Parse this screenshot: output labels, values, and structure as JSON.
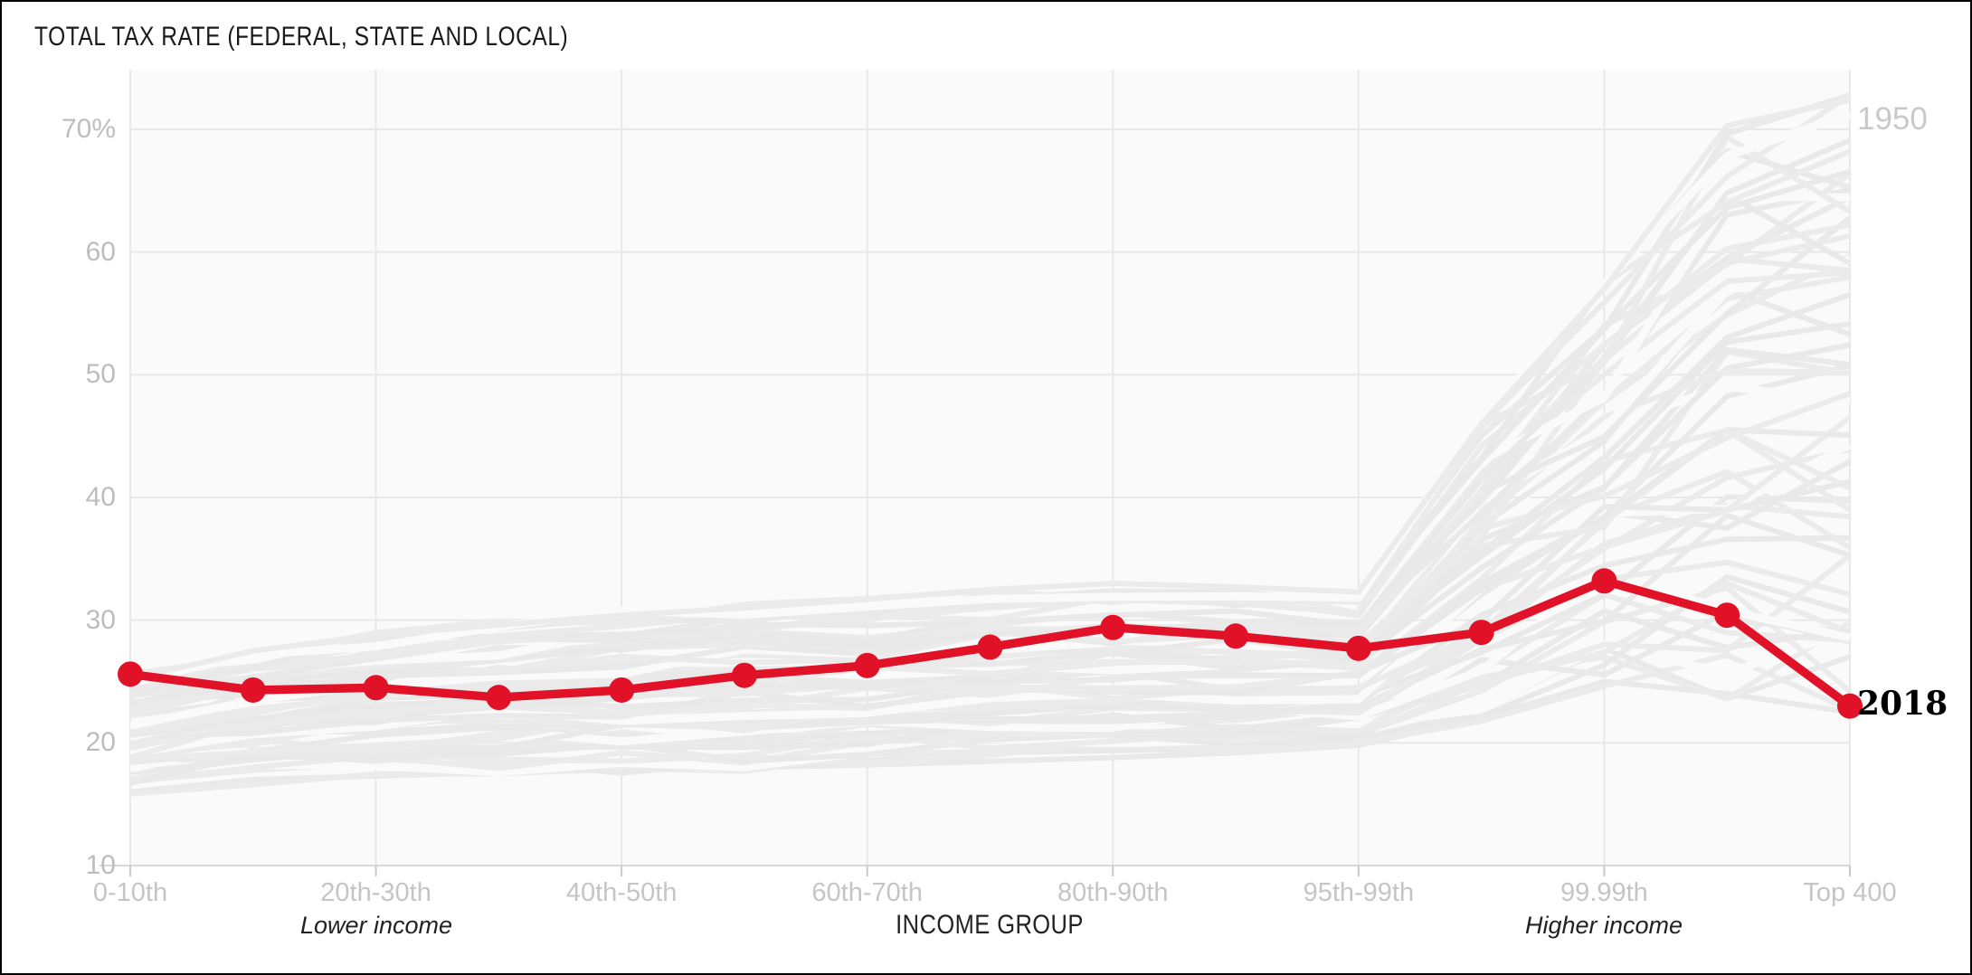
{
  "title": "TOTAL TAX RATE (FEDERAL, STATE AND LOCAL)",
  "chart_data": {
    "type": "line",
    "title": "TOTAL TAX RATE (FEDERAL, STATE AND LOCAL)",
    "xlabel": "INCOME GROUP",
    "x_annotations": {
      "lower": "Lower income",
      "higher": "Higher income"
    },
    "x_point_count": 15,
    "x_tick_indices": [
      0,
      2,
      4,
      6,
      8,
      10,
      12,
      14
    ],
    "x_tick_labels": [
      "0-10th",
      "20th-30th",
      "40th-50th",
      "60th-70th",
      "80th-90th",
      "95th-99th",
      "99.99th",
      "Top 400"
    ],
    "y_ticks": [
      {
        "value": 70,
        "label": "70%"
      },
      {
        "value": 60,
        "label": "60"
      },
      {
        "value": 50,
        "label": "50"
      },
      {
        "value": 40,
        "label": "40"
      },
      {
        "value": 30,
        "label": "30"
      },
      {
        "value": 20,
        "label": "20"
      },
      {
        "value": 10,
        "label": "10"
      }
    ],
    "ylim": [
      10,
      73
    ],
    "grid": true,
    "legend": "direct-labels-right",
    "series": [
      {
        "name": "2018",
        "role": "highlight",
        "color": "#e11227",
        "values": [
          25.6,
          24.3,
          24.5,
          23.7,
          24.3,
          25.5,
          26.3,
          27.8,
          29.4,
          28.7,
          27.7,
          29.0,
          33.2,
          30.4,
          23.0
        ]
      }
    ],
    "historical_band": {
      "description_label": "1950",
      "color": "#ebebeb",
      "background": "#fafafa",
      "gridline_color": "#e8e8e8",
      "num_lines": 60,
      "lower": [
        16,
        17,
        17.3,
        17.6,
        17.8,
        18,
        18.2,
        18.5,
        18.8,
        19.2,
        19.8,
        22,
        25,
        24,
        22.5
      ],
      "upper": [
        25.2,
        27.5,
        28.8,
        29.6,
        30.4,
        31,
        31.7,
        32.5,
        33,
        32.7,
        32.3,
        46,
        57,
        70.3,
        72.4
      ]
    },
    "end_labels": [
      {
        "text": "1950",
        "value": 70.8,
        "color": "#c9c9c9"
      },
      {
        "text": "2018",
        "value": 23.2,
        "color": "#000000"
      }
    ]
  }
}
